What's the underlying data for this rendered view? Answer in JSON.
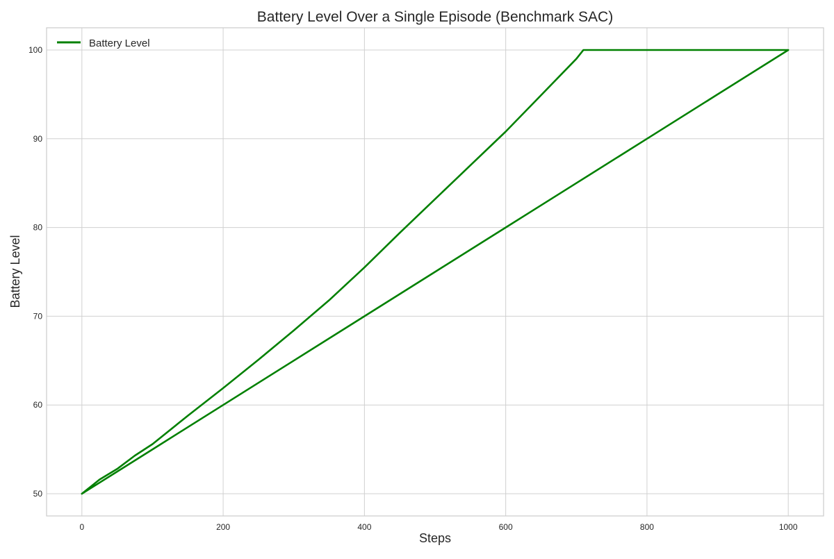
{
  "chart_data": {
    "type": "line",
    "title": "Battery Level Over a Single Episode (Benchmark SAC)",
    "xlabel": "Steps",
    "ylabel": "Battery Level",
    "xlim": [
      -50,
      1050
    ],
    "ylim": [
      47.5,
      102.5
    ],
    "xticks": [
      0,
      200,
      400,
      600,
      800,
      1000
    ],
    "yticks": [
      50,
      60,
      70,
      80,
      90,
      100
    ],
    "xtick_labels": [
      "0",
      "200",
      "400",
      "600",
      "800",
      "1000"
    ],
    "ytick_labels": [
      "50",
      "60",
      "70",
      "80",
      "90",
      "100"
    ],
    "grid": true,
    "legend_position": "top-left",
    "series": [
      {
        "name": "Battery Level",
        "color": "#008000",
        "x": [
          0,
          25,
          50,
          75,
          100,
          150,
          200,
          250,
          300,
          350,
          400,
          450,
          500,
          550,
          600,
          650,
          700,
          710,
          720,
          800,
          900,
          1000,
          900,
          800,
          700,
          600,
          500,
          400,
          300,
          200,
          100,
          50,
          0
        ],
        "y": [
          50,
          51.6,
          52.8,
          54.3,
          55.6,
          58.8,
          61.9,
          65.1,
          68.4,
          71.8,
          75.5,
          79.4,
          83.2,
          87.0,
          90.8,
          94.9,
          99.0,
          100,
          100,
          100,
          100,
          100,
          95,
          90,
          85,
          80,
          75,
          70,
          65,
          60,
          55,
          52.5,
          50
        ]
      }
    ]
  }
}
